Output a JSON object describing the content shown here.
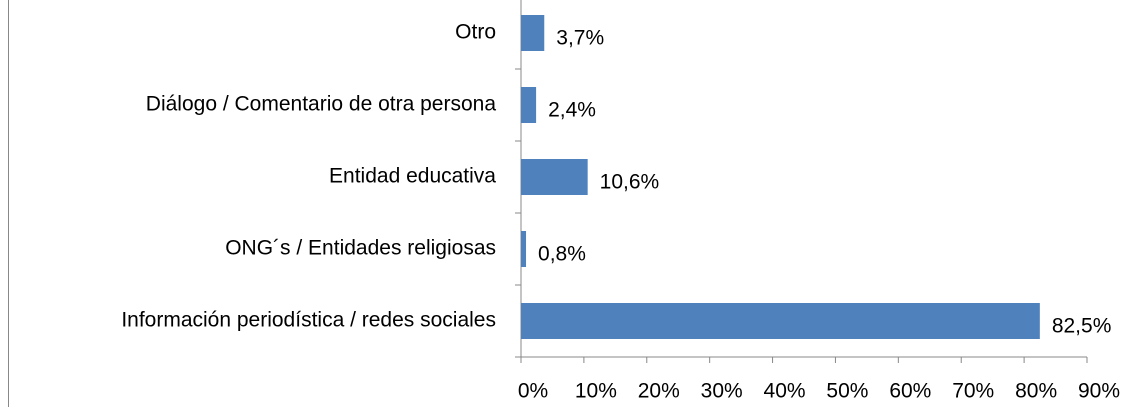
{
  "chart_data": {
    "type": "barh",
    "categories": [
      "Otro",
      "Diálogo / Comentario de otra persona",
      "Entidad educativa",
      "ONG´s / Entidades religiosas",
      "Información periodística / redes sociales"
    ],
    "values": [
      3.7,
      2.4,
      10.6,
      0.8,
      82.5
    ],
    "value_labels": [
      "3,7%",
      "2,4%",
      "10,6%",
      "0,8%",
      "82,5%"
    ],
    "color": "#4f81bd",
    "xlim": [
      0,
      90
    ],
    "xticks": [
      {
        "value": 0,
        "label": "0%"
      },
      {
        "value": 10,
        "label": "10%"
      },
      {
        "value": 20,
        "label": "20%"
      },
      {
        "value": 30,
        "label": "30%"
      },
      {
        "value": 40,
        "label": "40%"
      },
      {
        "value": 50,
        "label": "50%"
      },
      {
        "value": 60,
        "label": "60%"
      },
      {
        "value": 70,
        "label": "70%"
      },
      {
        "value": 80,
        "label": "80%"
      },
      {
        "value": 90,
        "label": "90%"
      }
    ]
  }
}
